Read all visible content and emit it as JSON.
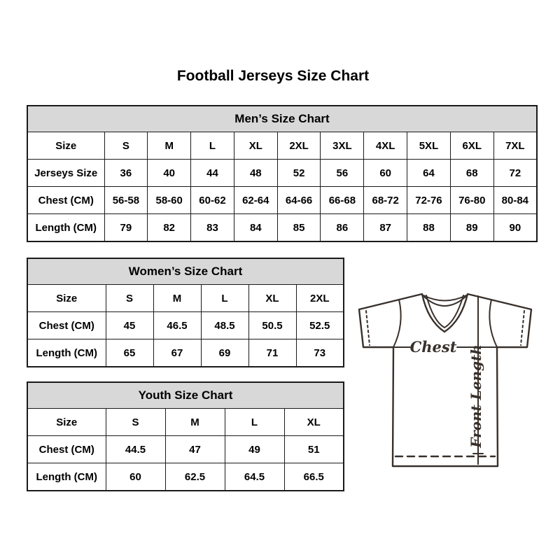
{
  "page": {
    "title": "Football Jerseys Size Chart"
  },
  "tables": {
    "mens": {
      "title": "Men’s Size Chart",
      "rows": [
        [
          "Size",
          "S",
          "M",
          "L",
          "XL",
          "2XL",
          "3XL",
          "4XL",
          "5XL",
          "6XL",
          "7XL"
        ],
        [
          "Jerseys Size",
          "36",
          "40",
          "44",
          "48",
          "52",
          "56",
          "60",
          "64",
          "68",
          "72"
        ],
        [
          "Chest (CM)",
          "56-58",
          "58-60",
          "60-62",
          "62-64",
          "64-66",
          "66-68",
          "68-72",
          "72-76",
          "76-80",
          "80-84"
        ],
        [
          "Length (CM)",
          "79",
          "82",
          "83",
          "84",
          "85",
          "86",
          "87",
          "88",
          "89",
          "90"
        ]
      ]
    },
    "womens": {
      "title": "Women’s Size Chart",
      "rows": [
        [
          "Size",
          "S",
          "M",
          "L",
          "XL",
          "2XL"
        ],
        [
          "Chest (CM)",
          "45",
          "46.5",
          "48.5",
          "50.5",
          "52.5"
        ],
        [
          "Length (CM)",
          "65",
          "67",
          "69",
          "71",
          "73"
        ]
      ]
    },
    "youth": {
      "title": "Youth Size Chart",
      "rows": [
        [
          "Size",
          "S",
          "M",
          "L",
          "XL"
        ],
        [
          "Chest (CM)",
          "44.5",
          "47",
          "49",
          "51"
        ],
        [
          "Length (CM)",
          "60",
          "62.5",
          "64.5",
          "66.5"
        ]
      ]
    }
  },
  "diagram": {
    "chest_label": "Chest",
    "front_length_label": "Front Length"
  },
  "colors": {
    "table_header_bg": "#d8d8d8",
    "table_border": "#1a1a1a",
    "text": "#000000",
    "drawing_stroke": "#38302b",
    "background": "#ffffff"
  }
}
